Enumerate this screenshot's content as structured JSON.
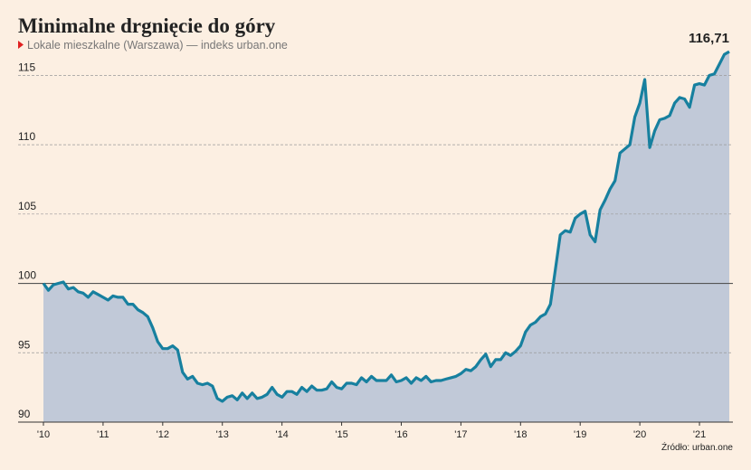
{
  "chart_data": {
    "type": "area",
    "title": "Minimalne drgnięcie do góry",
    "subtitle": "Lokale mieszkalne (Warszawa) — indeks urban.one",
    "source": "Źródło: urban.one",
    "categories": [
      "'10",
      null,
      null,
      null,
      null,
      null,
      null,
      null,
      null,
      null,
      null,
      null,
      "'11",
      null,
      null,
      null,
      null,
      null,
      null,
      null,
      null,
      null,
      null,
      null,
      "'12",
      null,
      null,
      null,
      null,
      null,
      null,
      null,
      null,
      null,
      null,
      null,
      "'13",
      null,
      null,
      null,
      null,
      null,
      null,
      null,
      null,
      null,
      null,
      null,
      "'14",
      null,
      null,
      null,
      null,
      null,
      null,
      null,
      null,
      null,
      null,
      null,
      "'15",
      null,
      null,
      null,
      null,
      null,
      null,
      null,
      null,
      null,
      null,
      null,
      "'16",
      null,
      null,
      null,
      null,
      null,
      null,
      null,
      null,
      null,
      null,
      null,
      "'17",
      null,
      null,
      null,
      null,
      null,
      null,
      null,
      null,
      null,
      null,
      null,
      "'18",
      null,
      null,
      null,
      null,
      null,
      null,
      null,
      null,
      null,
      null,
      null,
      "'19",
      null,
      null,
      null,
      null,
      null,
      null,
      null,
      null,
      null,
      null,
      null,
      "'20",
      null,
      null,
      null,
      null,
      null,
      null,
      null,
      null,
      null,
      null,
      null,
      "'21",
      null,
      null,
      null,
      null,
      null,
      null
    ],
    "values": [
      100,
      99.5,
      99.9,
      100.0,
      100.1,
      99.6,
      99.7,
      99.4,
      99.3,
      99.0,
      99.4,
      99.2,
      99.0,
      98.8,
      99.1,
      99.0,
      99.0,
      98.5,
      98.5,
      98.1,
      97.9,
      97.6,
      96.8,
      95.8,
      95.3,
      95.3,
      95.5,
      95.2,
      93.6,
      93.1,
      93.3,
      92.8,
      92.7,
      92.8,
      92.6,
      91.7,
      91.5,
      91.8,
      91.9,
      91.6,
      92.1,
      91.7,
      92.1,
      91.7,
      91.8,
      92.0,
      92.5,
      92.0,
      91.8,
      92.2,
      92.2,
      92.0,
      92.5,
      92.2,
      92.6,
      92.3,
      92.3,
      92.4,
      92.9,
      92.5,
      92.4,
      92.8,
      92.8,
      92.7,
      93.2,
      92.9,
      93.3,
      93.0,
      93.0,
      93.0,
      93.4,
      92.9,
      93.0,
      93.2,
      92.8,
      93.2,
      93.0,
      93.3,
      92.9,
      93.0,
      93.0,
      93.1,
      93.2,
      93.3,
      93.5,
      93.8,
      93.7,
      94.0,
      94.5,
      94.9,
      94.0,
      94.5,
      94.5,
      95.0,
      94.8,
      95.1,
      95.5,
      96.5,
      97.0,
      97.2,
      97.6,
      97.8,
      98.5,
      101.0,
      103.5,
      103.8,
      103.7,
      104.7,
      105.0,
      105.2,
      103.5,
      103.0,
      105.3,
      106.0,
      106.8,
      107.4,
      109.4,
      109.7,
      110.0,
      112.0,
      113.0,
      114.7,
      109.8,
      111.0,
      111.8,
      111.9,
      112.1,
      113.0,
      113.4,
      113.3,
      112.7,
      114.3,
      114.4,
      114.3,
      115.0,
      115.1,
      115.8,
      116.5,
      116.71
    ],
    "value_labels": [
      null,
      null,
      null,
      null,
      null,
      null,
      null,
      null,
      null,
      null,
      null,
      null,
      null,
      null,
      null,
      null,
      null,
      null,
      null,
      null,
      null,
      null,
      null,
      null,
      null,
      null,
      null,
      null,
      null,
      null,
      null,
      null,
      null,
      null,
      null,
      null,
      null,
      null,
      null,
      null,
      null,
      null,
      null,
      null,
      null,
      null,
      null,
      null,
      null,
      null,
      null,
      null,
      null,
      null,
      null,
      null,
      null,
      null,
      null,
      null,
      null,
      null,
      null,
      null,
      null,
      null,
      null,
      null,
      null,
      null,
      null,
      null,
      null,
      null,
      null,
      null,
      null,
      null,
      null,
      null,
      null,
      null,
      null,
      null,
      null,
      null,
      null,
      null,
      null,
      null,
      null,
      null,
      null,
      null,
      null,
      null,
      null,
      null,
      null,
      null,
      null,
      null,
      null,
      null,
      null,
      null,
      null,
      null,
      null,
      null,
      null,
      null,
      null,
      null,
      null,
      null,
      null,
      null,
      null,
      null,
      null,
      null,
      null,
      null,
      null,
      null,
      null,
      null,
      null,
      null,
      null,
      null,
      null,
      null,
      null,
      null,
      null,
      null,
      "116,71"
    ],
    "color": "#17809f",
    "fill": "#c1c9d8",
    "ylim": [
      90,
      117.5
    ],
    "yticks": [
      90,
      95,
      100,
      105,
      110,
      115
    ],
    "baseline": 100,
    "grid": true
  }
}
